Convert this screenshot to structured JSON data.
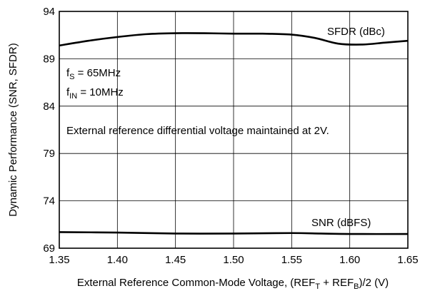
{
  "chart_data": {
    "type": "line",
    "title": "",
    "xlabel": "External Reference Common-Mode Voltage, (REF",
    "xlabel_sub1": "T",
    "xlabel_mid": " + REF",
    "xlabel_sub2": "B",
    "xlabel_end": ")/2 (V)",
    "ylabel": "Dynamic Performance (SNR, SFDR)",
    "xlim": [
      1.35,
      1.65
    ],
    "ylim": [
      69,
      94
    ],
    "x_ticks": [
      "1.35",
      "1.40",
      "1.45",
      "1.50",
      "1.55",
      "1.60",
      "1.65"
    ],
    "x_tick_values": [
      1.35,
      1.4,
      1.45,
      1.5,
      1.55,
      1.6,
      1.65
    ],
    "y_ticks": [
      "69",
      "74",
      "79",
      "84",
      "89",
      "94"
    ],
    "y_tick_values": [
      69,
      74,
      79,
      84,
      89,
      94
    ],
    "grid": true,
    "series": [
      {
        "name": "SFDR (dBc)",
        "x": [
          1.35,
          1.375,
          1.4,
          1.425,
          1.45,
          1.475,
          1.5,
          1.525,
          1.55,
          1.57,
          1.59,
          1.61,
          1.63,
          1.65
        ],
        "y": [
          90.4,
          90.9,
          91.3,
          91.6,
          91.7,
          91.7,
          91.65,
          91.65,
          91.55,
          91.2,
          90.6,
          90.5,
          90.7,
          90.9
        ]
      },
      {
        "name": "SNR (dBFS)",
        "x": [
          1.35,
          1.4,
          1.45,
          1.5,
          1.55,
          1.575,
          1.6,
          1.65
        ],
        "y": [
          70.7,
          70.65,
          70.55,
          70.55,
          70.6,
          70.55,
          70.5,
          70.5
        ]
      }
    ],
    "annotations": {
      "fs_main": "f",
      "fs_sub": "S",
      "fs_value": " = 65MHz",
      "fin_main": "f",
      "fin_sub": "IN",
      "fin_value": " = 10MHz",
      "note": "External reference differential voltage maintained at 2V."
    }
  }
}
